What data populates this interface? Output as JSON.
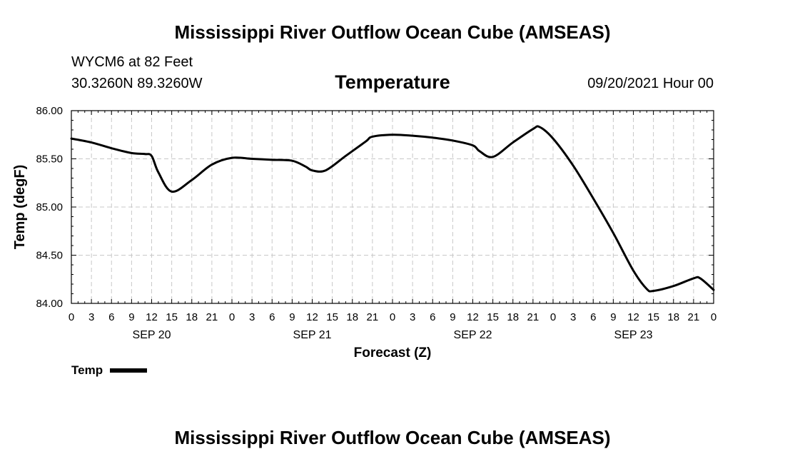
{
  "header": {
    "title": "Mississippi River Outflow Ocean Cube (AMSEAS)",
    "station": "WYCM6 at 82 Feet",
    "coords": "30.3260N  89.3260W",
    "variable": "Temperature",
    "run": "09/20/2021 Hour 00"
  },
  "footer": {
    "title": "Mississippi River Outflow Ocean Cube (AMSEAS)"
  },
  "legend": {
    "label": "Temp"
  },
  "chart_data": {
    "type": "line",
    "title": "Temperature",
    "xlabel": "Forecast (Z)",
    "ylabel": "Temp (degF)",
    "ylim": [
      84.0,
      86.0
    ],
    "xlim_hours": [
      0,
      96
    ],
    "grid": true,
    "y_ticks": [
      "84.00",
      "84.50",
      "85.00",
      "85.50",
      "86.00"
    ],
    "y_tick_values": [
      84.0,
      84.5,
      85.0,
      85.5,
      86.0
    ],
    "x_tick_labels": [
      "0",
      "3",
      "6",
      "9",
      "12",
      "15",
      "18",
      "21",
      "0",
      "3",
      "6",
      "9",
      "12",
      "15",
      "18",
      "21",
      "0",
      "3",
      "6",
      "9",
      "12",
      "15",
      "18",
      "21",
      "0",
      "3",
      "6",
      "9",
      "12",
      "15",
      "18",
      "21",
      "0"
    ],
    "day_labels": [
      {
        "label": "SEP 20",
        "hour": 12
      },
      {
        "label": "SEP 21",
        "hour": 36
      },
      {
        "label": "SEP 22",
        "hour": 60
      },
      {
        "label": "SEP 23",
        "hour": 84
      }
    ],
    "series": [
      {
        "name": "Temp",
        "color": "#000000",
        "x": [
          0,
          3,
          6,
          9,
          11,
          12,
          13,
          15,
          18,
          21,
          24,
          27,
          30,
          33,
          35,
          36,
          38,
          41,
          44,
          45,
          48,
          51,
          54,
          57,
          60,
          61,
          63,
          66,
          69,
          70,
          72,
          75,
          78,
          81,
          84,
          86,
          87,
          90,
          93,
          94,
          96
        ],
        "values": [
          85.71,
          85.67,
          85.61,
          85.56,
          85.55,
          85.53,
          85.36,
          85.16,
          85.28,
          85.44,
          85.51,
          85.5,
          85.49,
          85.48,
          85.42,
          85.38,
          85.38,
          85.53,
          85.68,
          85.73,
          85.75,
          85.74,
          85.72,
          85.69,
          85.64,
          85.58,
          85.52,
          85.67,
          85.81,
          85.83,
          85.71,
          85.43,
          85.09,
          84.73,
          84.34,
          84.15,
          84.13,
          84.18,
          84.26,
          84.26,
          84.14
        ]
      }
    ]
  }
}
